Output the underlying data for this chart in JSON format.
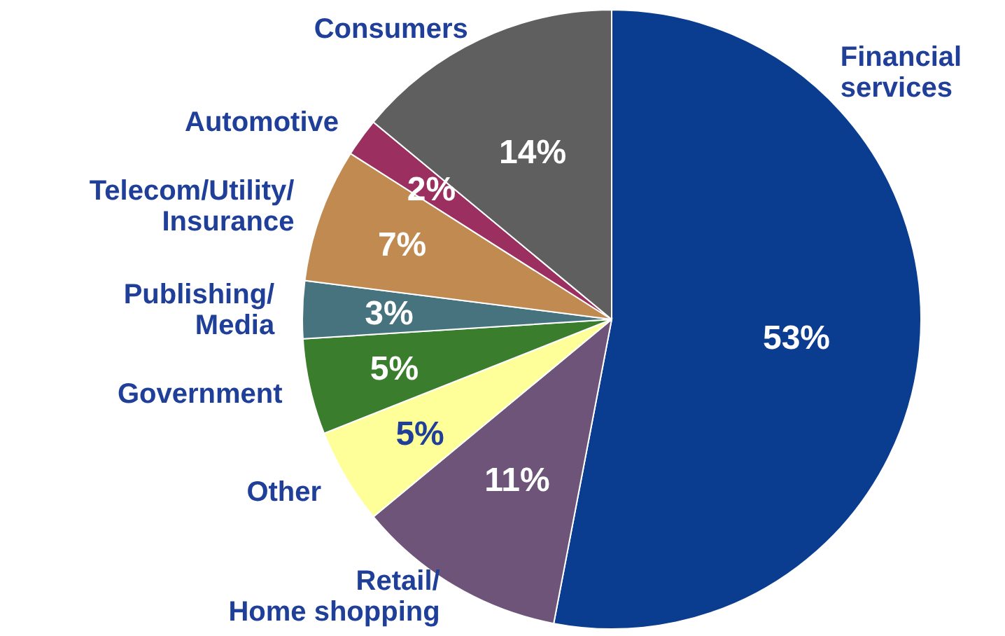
{
  "chart_data": {
    "type": "pie",
    "categories": [
      "Financial\nservices",
      "Retail/\nHome shopping",
      "Other",
      "Government",
      "Publishing/\nMedia",
      "Telecom/Utility/\nInsurance",
      "Automotive",
      "Consumers"
    ],
    "values": [
      53,
      11,
      5,
      5,
      3,
      7,
      2,
      14
    ],
    "value_labels": [
      "53%",
      "11%",
      "5%",
      "5%",
      "3%",
      "7%",
      "2%",
      "14%"
    ],
    "colors": [
      "#0a3d8f",
      "#6e5479",
      "#ffff99",
      "#3a7d2c",
      "#47737f",
      "#c08a50",
      "#9b3060",
      "#5f5f5f"
    ]
  }
}
